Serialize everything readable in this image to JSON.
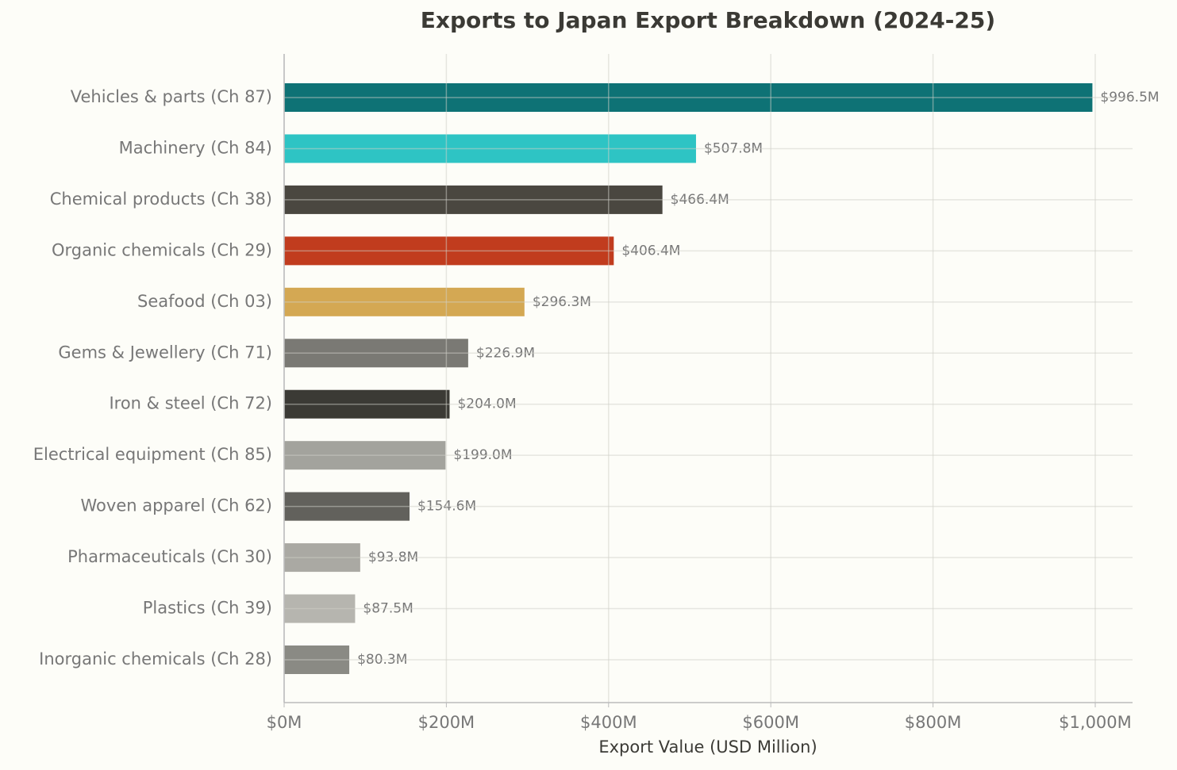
{
  "chart_data": {
    "type": "barh",
    "title": "Exports to Japan Export Breakdown (2024-25)",
    "x_label": "Export Value (USD Million)",
    "categories": [
      "Vehicles & parts (Ch 87)",
      "Machinery (Ch 84)",
      "Chemical products (Ch 38)",
      "Organic chemicals (Ch 29)",
      "Seafood (Ch 03)",
      "Gems & Jewellery (Ch 71)",
      "Iron & steel (Ch 72)",
      "Electrical equipment (Ch 85)",
      "Woven apparel (Ch 62)",
      "Pharmaceuticals (Ch 30)",
      "Plastics (Ch 39)",
      "Inorganic chemicals (Ch 28)"
    ],
    "values": [
      996.5,
      507.8,
      466.4,
      406.4,
      296.3,
      226.9,
      204.0,
      199.0,
      154.6,
      93.8,
      87.5,
      80.3
    ],
    "value_labels": [
      "$996.5M",
      "$507.8M",
      "$466.4M",
      "$406.4M",
      "$296.3M",
      "$226.9M",
      "$204.0M",
      "$199.0M",
      "$154.6M",
      "$93.8M",
      "$87.5M",
      "$80.3M"
    ],
    "colors": [
      "#0e7275",
      "#2ec4c4",
      "#4a4740",
      "#c13c1e",
      "#d4a853",
      "#7a7974",
      "#3b3a35",
      "#a3a39d",
      "#62615c",
      "#aaa9a3",
      "#b6b5af",
      "#8a8a84"
    ],
    "xlim": [
      0,
      1046
    ],
    "xticks": [
      {
        "value": 0,
        "label": "$0M"
      },
      {
        "value": 200,
        "label": "$200M"
      },
      {
        "value": 400,
        "label": "$400M"
      },
      {
        "value": 600,
        "label": "$600M"
      },
      {
        "value": 800,
        "label": "$800M"
      },
      {
        "value": 1000,
        "label": "$1,000M"
      }
    ],
    "grid": true
  }
}
